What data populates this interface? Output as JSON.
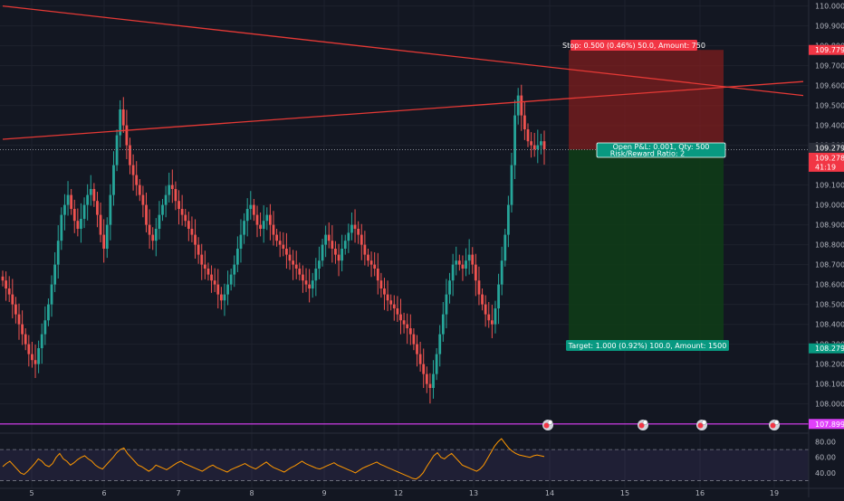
{
  "chart_data": {
    "type": "candlestick",
    "symbol_note": "",
    "x_axis_labels": [
      "5",
      "6",
      "7",
      "8",
      "9",
      "12",
      "13",
      "14",
      "15",
      "16",
      "19"
    ],
    "y_axis": {
      "ticks": [
        "110.000",
        "109.900",
        "109.800",
        "109.700",
        "109.600",
        "109.500",
        "109.400",
        "109.300",
        "109.200",
        "109.100",
        "109.000",
        "108.900",
        "108.800",
        "108.700",
        "108.600",
        "108.500",
        "108.400",
        "108.300",
        "108.200",
        "108.100",
        "108.000"
      ],
      "range": [
        107.93,
        110.03
      ]
    },
    "price_tags": {
      "stop": "109.779",
      "current": "109.279",
      "entry": "109.278",
      "countdown": "41:19",
      "target": "108.279",
      "horizontal": "107.899"
    },
    "position": {
      "side": "short",
      "entry": 109.278,
      "stop": 109.779,
      "target": 108.279,
      "stop_label": "Stop: 0.500 (0.46%) 50.0, Amount: 750",
      "pnl_label": "Open P&L: 0.001, Qty: 500",
      "rr_label": "Risk/Reward Ratio: 2",
      "target_label": "Target: 1.000 (0.92%) 100.0, Amount: 1500"
    },
    "trendlines": [
      {
        "name": "descending",
        "from": {
          "day": 4.6,
          "price": 110.0
        },
        "to": {
          "day": 19.4,
          "price": 109.55
        }
      },
      {
        "name": "ascending",
        "from": {
          "day": 4.6,
          "price": 109.33
        },
        "to": {
          "day": 19.4,
          "price": 109.62
        }
      }
    ],
    "horizontal_line": 107.899,
    "close_series": [
      108.62,
      108.58,
      108.55,
      108.5,
      108.45,
      108.4,
      108.35,
      108.3,
      108.25,
      108.22,
      108.2,
      108.28,
      108.35,
      108.42,
      108.5,
      108.6,
      108.7,
      108.82,
      108.95,
      109.0,
      109.05,
      108.98,
      108.92,
      108.88,
      108.93,
      109.0,
      109.05,
      109.08,
      109.02,
      108.95,
      108.85,
      108.78,
      108.9,
      109.05,
      109.2,
      109.35,
      109.48,
      109.4,
      109.3,
      109.2,
      109.15,
      109.1,
      109.05,
      109.0,
      108.9,
      108.85,
      108.82,
      108.88,
      108.95,
      109.0,
      109.05,
      109.1,
      109.08,
      109.02,
      108.98,
      108.95,
      108.92,
      108.88,
      108.85,
      108.8,
      108.75,
      108.7,
      108.68,
      108.65,
      108.62,
      108.6,
      108.55,
      108.52,
      108.55,
      108.6,
      108.65,
      108.7,
      108.78,
      108.85,
      108.92,
      108.98,
      109.0,
      108.95,
      108.9,
      108.88,
      108.92,
      108.95,
      108.9,
      108.85,
      108.82,
      108.8,
      108.78,
      108.75,
      108.72,
      108.7,
      108.68,
      108.65,
      108.62,
      108.6,
      108.58,
      108.62,
      108.68,
      108.72,
      108.8,
      108.85,
      108.82,
      108.78,
      108.75,
      108.72,
      108.78,
      108.82,
      108.86,
      108.9,
      108.88,
      108.85,
      108.8,
      108.75,
      108.72,
      108.7,
      108.68,
      108.62,
      108.58,
      108.55,
      108.52,
      108.5,
      108.48,
      108.45,
      108.42,
      108.4,
      108.38,
      108.35,
      108.3,
      108.25,
      108.2,
      108.15,
      108.1,
      108.08,
      108.15,
      108.25,
      108.35,
      108.45,
      108.55,
      108.62,
      108.7,
      108.72,
      108.7,
      108.68,
      108.72,
      108.75,
      108.7,
      108.62,
      108.55,
      108.5,
      108.45,
      108.42,
      108.4,
      108.48,
      108.6,
      108.72,
      108.85,
      109.0,
      109.2,
      109.45,
      109.55,
      109.45,
      109.38,
      109.32,
      109.3,
      109.28,
      109.3,
      109.32,
      109.28
    ],
    "rsi": {
      "ticks": [
        "80.00",
        "60.00",
        "40.00"
      ],
      "upper": 70,
      "lower": 30,
      "range": [
        20,
        90
      ],
      "series": [
        48,
        52,
        55,
        50,
        45,
        40,
        38,
        42,
        47,
        52,
        58,
        55,
        50,
        48,
        52,
        60,
        65,
        58,
        55,
        50,
        53,
        57,
        60,
        62,
        58,
        55,
        50,
        47,
        45,
        50,
        55,
        60,
        66,
        70,
        72,
        65,
        60,
        55,
        50,
        48,
        45,
        42,
        45,
        50,
        48,
        46,
        44,
        47,
        50,
        53,
        55,
        52,
        50,
        48,
        46,
        44,
        42,
        45,
        48,
        50,
        47,
        45,
        43,
        41,
        44,
        46,
        48,
        50,
        52,
        49,
        47,
        45,
        48,
        51,
        54,
        50,
        47,
        45,
        43,
        41,
        44,
        47,
        49,
        52,
        55,
        52,
        50,
        48,
        46,
        45,
        47,
        49,
        51,
        53,
        50,
        48,
        46,
        44,
        42,
        40,
        43,
        46,
        48,
        50,
        52,
        54,
        51,
        49,
        47,
        45,
        43,
        41,
        39,
        37,
        35,
        33,
        32,
        35,
        40,
        48,
        55,
        62,
        66,
        60,
        58,
        62,
        65,
        60,
        55,
        50,
        48,
        46,
        44,
        42,
        45,
        50,
        58,
        66,
        74,
        80,
        84,
        78,
        72,
        68,
        65,
        63,
        62,
        61,
        60,
        62,
        63,
        62,
        61
      ]
    },
    "event_icons_count": 4,
    "colors": {
      "background": "#131722",
      "up": "#26a69a",
      "down": "#ef5350",
      "trendline": "#e53935",
      "stop_zone": "#7f1d1d",
      "target_zone": "#0f3d16",
      "horizontal": "#e040fb",
      "rsi_line": "#ff9800",
      "tag_red": "#f23645",
      "tag_green": "#089981"
    }
  }
}
